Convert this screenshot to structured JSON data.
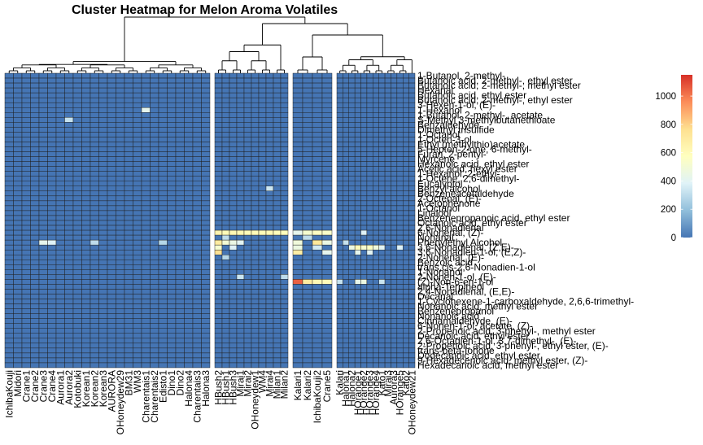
{
  "chart_data": {
    "type": "heatmap",
    "title": "Cluster Heatmap for Melon Aroma Volatiles",
    "rows": [
      "1-Butanol, 2-methyl-",
      "Butanoic acid, 2-methyl-, ethyl ester",
      "Butanoic acid, 2-methyl-, methyl ester",
      "Hexanal",
      "Butanoic acid, ethyl ester",
      "Butanoic acid, 2-methyl-, ethyl ester",
      "3-Hexen-1-ol, (E)-",
      "1-Hexanol",
      "1-Butanol, 2-methyl-, acetate",
      "S-Methyl 3-methylbutanethioate",
      "Benzaldehyde",
      "Dimethyl trisulfide",
      "1-Octanol",
      "1-Octen-3-ol",
      "Ethyl (methylthio)acetate",
      "5-Hepten-2-one, 6-methyl-",
      "Furan, 2-pentyl-",
      "Myrcene",
      "Hexanoic acid, ethyl ester",
      "Acetic acid, hexyl ester",
      "1-Hexanol, 2-ethyl-",
      "1-Octene, 2,6-dimethyl-",
      "Eucalyptol",
      "Benzyl alcohol",
      "Benzeneacetaldehyde",
      "2-Octenal, (E)-",
      "Acetophenone",
      "1-Octanol",
      "Linalool",
      "Benzenepropanoic acid, ethyl ester",
      "Octanoic acid, ethyl ester",
      "2,6-Nonadienal",
      "6-Nonenal, (Z)-",
      "Nonanal",
      "Phenylethyl Alcohol",
      "3,6-Nonadienal, (Z,E)-",
      "3,6-Nonadien-1-ol, (E,Z)-",
      "2-Nonenal, (E)-",
      "Benzoic acid",
      "trans,cis-2,6-Nonadien-1-ol",
      "1-Nonanol",
      "2-Nonen-1-ol, (E)-",
      "(Z)-Non-6-en-1-ol",
      "alpha-Terpineol",
      "2,4-Nonadienal, (E,E)-",
      "Decanal",
      "1-Cyclohexene-1-carboxaldehyde, 2,6,6-trimethyl-",
      "Nonanoic acid, methyl ester",
      "Benzenepropanol",
      "Nonanoic acid",
      "Cinnamaldehyde, (E)-",
      "6-Nonen-1-ol, acetate, (Z)-",
      "2-Propenoic acid, 3-phenyl-, methyl ester",
      "Decanoic acid, ethyl ester",
      "2,6-Octadien-1-ol, 3,7-dimethyl-, (E)-",
      "2-Propenoic acid, 3-phenyl-, ethyl ester, (E)-",
      "trans-beta-Ionone",
      "Dodecanoic acid, ethyl ester",
      "9-Hexadecenoic acid, methyl ester, (Z)-",
      "Hexadecanoic acid, methyl ester"
    ],
    "columns": [
      "IchibaKouji",
      "Midori",
      "Crane1",
      "Crane2",
      "Crane3",
      "Crane4",
      "Aurora1",
      "Aurora2",
      "Kotobuki",
      "Korean1",
      "Korean2",
      "Korean3",
      "AURORA",
      "OHoneydew29",
      "BM31",
      "WM3",
      "Charentais1",
      "Charentais2",
      "Edisto1",
      "Dino1",
      "Dino2",
      "Halona4",
      "Charentais3",
      "Halona3",
      "HBush2",
      "HBush1",
      "HBush3",
      "Mirai1",
      "Mirai2",
      "OHoneydew1",
      "WM4",
      "Mirai4",
      "Milan1",
      "Milan2",
      "Kalari1",
      "Kalari2",
      "IchibaKouji2",
      "Crane5",
      "Kalari",
      "Halona1",
      "Halona2",
      "HOrange1",
      "HOrange2",
      "HOrange3",
      "HOrange4",
      "Kato1",
      "Mirai3",
      "Aurora3",
      "HOrange5",
      "Kato2",
      "OHoneydew21"
    ],
    "column_groups": [
      24,
      10,
      4,
      13
    ],
    "value_range": [
      0,
      1150
    ],
    "colorbar_ticks": [
      0,
      200,
      400,
      600,
      800,
      1000
    ],
    "colormap": [
      "#4575b4",
      "#91bfdb",
      "#e0f3f8",
      "#ffffbf",
      "#fee090",
      "#fc8d59",
      "#d73027"
    ],
    "high_cells": [
      {
        "row": "1-Hexanol",
        "column": "Charentais1",
        "value": 420
      },
      {
        "row": "S-Methyl 3-methylbutanethioate",
        "column": "Aurora2",
        "value": 320
      },
      {
        "row": "Benzyl alcohol",
        "column": "Mirai4",
        "value": 340
      },
      {
        "row": "6-Nonenal, (Z)-",
        "column": "HBush2",
        "value": 640
      },
      {
        "row": "6-Nonenal, (Z)-",
        "column": "HBush1",
        "value": 600
      },
      {
        "row": "6-Nonenal, (Z)-",
        "column": "HBush3",
        "value": 620
      },
      {
        "row": "6-Nonenal, (Z)-",
        "column": "Mirai1",
        "value": 620
      },
      {
        "row": "6-Nonenal, (Z)-",
        "column": "Mirai2",
        "value": 600
      },
      {
        "row": "6-Nonenal, (Z)-",
        "column": "OHoneydew1",
        "value": 600
      },
      {
        "row": "6-Nonenal, (Z)-",
        "column": "WM4",
        "value": 600
      },
      {
        "row": "6-Nonenal, (Z)-",
        "column": "Mirai4",
        "value": 610
      },
      {
        "row": "6-Nonenal, (Z)-",
        "column": "Milan1",
        "value": 590
      },
      {
        "row": "6-Nonenal, (Z)-",
        "column": "Milan2",
        "value": 580
      },
      {
        "row": "6-Nonenal, (Z)-",
        "column": "Kalari1",
        "value": 420
      },
      {
        "row": "6-Nonenal, (Z)-",
        "column": "Kalari2",
        "value": 520
      },
      {
        "row": "6-Nonenal, (Z)-",
        "column": "IchibaKouji2",
        "value": 560
      },
      {
        "row": "6-Nonenal, (Z)-",
        "column": "Crane5",
        "value": 540
      },
      {
        "row": "6-Nonenal, (Z)-",
        "column": "HOrange2",
        "value": 380
      },
      {
        "row": "Nonanal",
        "column": "HBush1",
        "value": 300
      },
      {
        "row": "Nonanal",
        "column": "Kalari2",
        "value": 300
      },
      {
        "row": "Phenylethyl Alcohol",
        "column": "Crane3",
        "value": 420
      },
      {
        "row": "Phenylethyl Alcohol",
        "column": "Crane4",
        "value": 380
      },
      {
        "row": "Phenylethyl Alcohol",
        "column": "Korean2",
        "value": 300
      },
      {
        "row": "Phenylethyl Alcohol",
        "column": "Edisto1",
        "value": 280
      },
      {
        "row": "Phenylethyl Alcohol",
        "column": "HBush2",
        "value": 700
      },
      {
        "row": "Phenylethyl Alcohol",
        "column": "HBush1",
        "value": 500
      },
      {
        "row": "Phenylethyl Alcohol",
        "column": "HBush3",
        "value": 450
      },
      {
        "row": "Phenylethyl Alcohol",
        "column": "Mirai1",
        "value": 400
      },
      {
        "row": "Phenylethyl Alcohol",
        "column": "Kalari1",
        "value": 480
      },
      {
        "row": "Phenylethyl Alcohol",
        "column": "IchibaKouji2",
        "value": 720
      },
      {
        "row": "Phenylethyl Alcohol",
        "column": "Crane5",
        "value": 450
      },
      {
        "row": "Phenylethyl Alcohol",
        "column": "Halona1",
        "value": 320
      },
      {
        "row": "3,6-Nonadienal, (Z,E)-",
        "column": "HBush2",
        "value": 520
      },
      {
        "row": "3,6-Nonadienal, (Z,E)-",
        "column": "HBush3",
        "value": 380
      },
      {
        "row": "3,6-Nonadienal, (Z,E)-",
        "column": "Kalari1",
        "value": 460
      },
      {
        "row": "3,6-Nonadienal, (Z,E)-",
        "column": "IchibaKouji2",
        "value": 350
      },
      {
        "row": "3,6-Nonadienal, (Z,E)-",
        "column": "Halona2",
        "value": 460
      },
      {
        "row": "3,6-Nonadienal, (Z,E)-",
        "column": "HOrange1",
        "value": 600
      },
      {
        "row": "3,6-Nonadienal, (Z,E)-",
        "column": "HOrange2",
        "value": 520
      },
      {
        "row": "3,6-Nonadienal, (Z,E)-",
        "column": "HOrange3",
        "value": 560
      },
      {
        "row": "3,6-Nonadienal, (Z,E)-",
        "column": "HOrange4",
        "value": 480
      },
      {
        "row": "3,6-Nonadienal, (Z,E)-",
        "column": "Kato1",
        "value": 400
      },
      {
        "row": "3,6-Nonadienal, (Z,E)-",
        "column": "HOrange5",
        "value": 380
      },
      {
        "row": "3,6-Nonadien-1-ol, (E,Z)-",
        "column": "HBush2",
        "value": 760
      },
      {
        "row": "3,6-Nonadien-1-ol, (E,Z)-",
        "column": "Kalari1",
        "value": 680
      },
      {
        "row": "3,6-Nonadien-1-ol, (E,Z)-",
        "column": "Crane5",
        "value": 420
      },
      {
        "row": "3,6-Nonadien-1-ol, (E,Z)-",
        "column": "HOrange1",
        "value": 420
      },
      {
        "row": "3,6-Nonadien-1-ol, (E,Z)-",
        "column": "HOrange3",
        "value": 400
      },
      {
        "row": "2-Nonenal, (E)-",
        "column": "HBush1",
        "value": 280
      },
      {
        "row": "2-Nonen-1-ol, (E)-",
        "column": "Mirai1",
        "value": 330
      },
      {
        "row": "2-Nonen-1-ol, (E)-",
        "column": "Milan2",
        "value": 300
      },
      {
        "row": "(Z)-Non-6-en-1-ol",
        "column": "Kalari1",
        "value": 1050
      },
      {
        "row": "(Z)-Non-6-en-1-ol",
        "column": "Kalari2",
        "value": 700
      },
      {
        "row": "(Z)-Non-6-en-1-ol",
        "column": "IchibaKouji2",
        "value": 620
      },
      {
        "row": "(Z)-Non-6-en-1-ol",
        "column": "Crane5",
        "value": 600
      },
      {
        "row": "(Z)-Non-6-en-1-ol",
        "column": "Kalari",
        "value": 320
      },
      {
        "row": "(Z)-Non-6-en-1-ol",
        "column": "HOrange1",
        "value": 430
      },
      {
        "row": "(Z)-Non-6-en-1-ol",
        "column": "HOrange2",
        "value": 460
      },
      {
        "row": "(Z)-Non-6-en-1-ol",
        "column": "Kato1",
        "value": 330
      }
    ],
    "background_value": 0,
    "legend": "right"
  }
}
